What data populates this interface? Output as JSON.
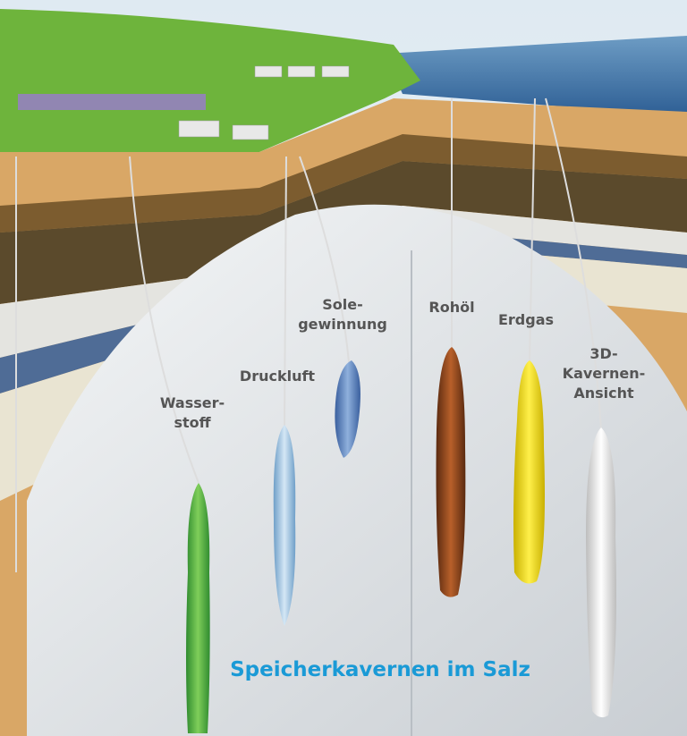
{
  "title": "Speicherkavernen im Salz",
  "labels": [
    {
      "lines": [
        "Wasser-",
        "stoff"
      ]
    },
    {
      "lines": [
        "Druckluft"
      ]
    },
    {
      "lines": [
        "Sole-",
        "gewinnung"
      ]
    },
    {
      "lines": [
        "Rohöl"
      ]
    },
    {
      "lines": [
        "Erdgas"
      ]
    },
    {
      "lines": [
        "3D-",
        "Kavernen-",
        "Ansicht"
      ]
    }
  ]
}
